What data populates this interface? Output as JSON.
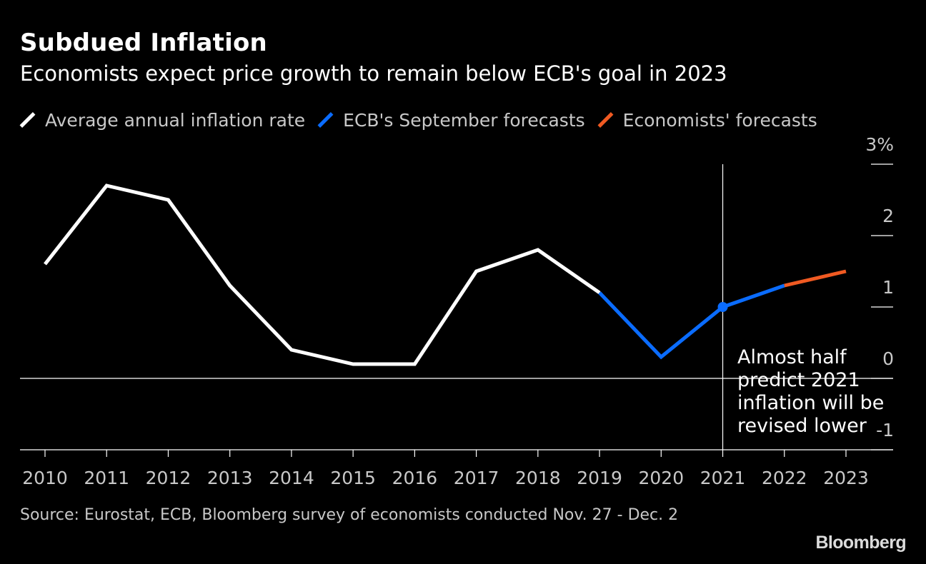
{
  "title": "Subdued Inflation",
  "subtitle": "Economists expect price growth to remain below ECB's goal in 2023",
  "legend": [
    {
      "label": "Average annual inflation rate",
      "color": "#ffffff"
    },
    {
      "label": "ECB's September forecasts",
      "color": "#0a6cff"
    },
    {
      "label": "Economists' forecasts",
      "color": "#f05a22"
    }
  ],
  "source": "Source: Eurostat, ECB, Bloomberg survey of economists conducted Nov. 27 - Dec. 2",
  "brand": "Bloomberg",
  "chart_data": {
    "type": "line",
    "x": [
      2010,
      2011,
      2012,
      2013,
      2014,
      2015,
      2016,
      2017,
      2018,
      2019,
      2020,
      2021,
      2022,
      2023
    ],
    "y_tick_labels": [
      "3%",
      "2",
      "1",
      "0",
      "-1"
    ],
    "y_ticks": [
      3,
      2,
      1,
      0,
      -1
    ],
    "ylim": [
      -1,
      3
    ],
    "xlim": [
      2009.6,
      2023.75
    ],
    "series": [
      {
        "name": "Average annual inflation rate",
        "color": "#ffffff",
        "x": [
          2010,
          2011,
          2012,
          2013,
          2014,
          2015,
          2016,
          2017,
          2018,
          2019
        ],
        "values": [
          1.6,
          2.7,
          2.5,
          1.3,
          0.4,
          0.2,
          0.2,
          1.5,
          1.8,
          1.2
        ]
      },
      {
        "name": "ECB's September forecasts",
        "color": "#0a6cff",
        "x": [
          2019,
          2020,
          2021,
          2022
        ],
        "values": [
          1.2,
          0.3,
          1.0,
          1.3
        ]
      },
      {
        "name": "Economists' forecasts",
        "color": "#f05a22",
        "x": [
          2022,
          2023
        ],
        "values": [
          1.3,
          1.5
        ]
      }
    ],
    "markers": [
      {
        "x": 2021,
        "y": 1.0,
        "color": "#0a6cff"
      }
    ],
    "reference_line_x": 2021,
    "annotation": {
      "lines": [
        "Almost half",
        "predict 2021",
        "inflation will be",
        "revised lower"
      ]
    },
    "grid": false,
    "legend_position": "top"
  }
}
